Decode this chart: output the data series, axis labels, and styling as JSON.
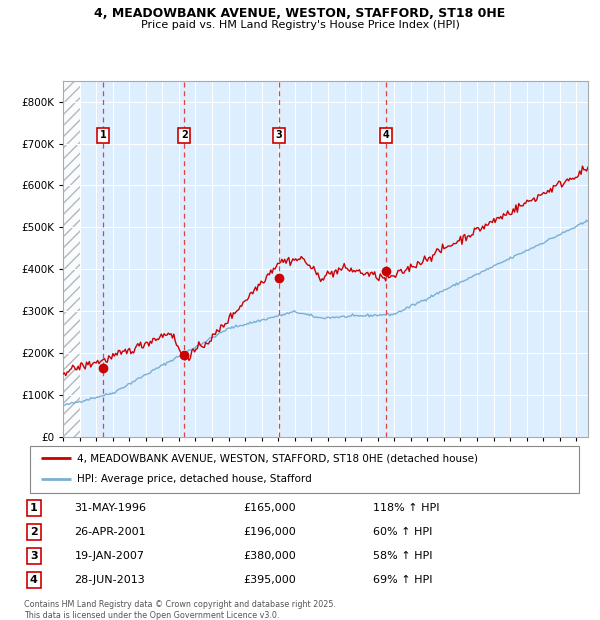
{
  "title_line1": "4, MEADOWBANK AVENUE, WESTON, STAFFORD, ST18 0HE",
  "title_line2": "Price paid vs. HM Land Registry's House Price Index (HPI)",
  "ylim": [
    0,
    850000
  ],
  "yticks": [
    0,
    100000,
    200000,
    300000,
    400000,
    500000,
    600000,
    700000,
    800000
  ],
  "ytick_labels": [
    "£0",
    "£100K",
    "£200K",
    "£300K",
    "£400K",
    "£500K",
    "£600K",
    "£700K",
    "£800K"
  ],
  "background_color": "#ffffff",
  "plot_bg_color": "#ddeeff",
  "grid_color": "#ffffff",
  "red_line_color": "#cc0000",
  "blue_line_color": "#7ab0d4",
  "dashed_line_color": "#dd4444",
  "purchases": [
    {
      "label": "1",
      "date_x": 1996.42,
      "price": 165000,
      "date_str": "31-MAY-1996",
      "pct": "118%"
    },
    {
      "label": "2",
      "date_x": 2001.32,
      "price": 196000,
      "date_str": "26-APR-2001",
      "pct": "60%"
    },
    {
      "label": "3",
      "date_x": 2007.05,
      "price": 380000,
      "date_str": "19-JAN-2007",
      "pct": "58%"
    },
    {
      "label": "4",
      "date_x": 2013.49,
      "price": 395000,
      "date_str": "28-JUN-2013",
      "pct": "69%"
    }
  ],
  "legend_entries": [
    {
      "label": "4, MEADOWBANK AVENUE, WESTON, STAFFORD, ST18 0HE (detached house)",
      "color": "#cc0000"
    },
    {
      "label": "HPI: Average price, detached house, Stafford",
      "color": "#7ab0d4"
    }
  ],
  "footnote": "Contains HM Land Registry data © Crown copyright and database right 2025.\nThis data is licensed under the Open Government Licence v3.0.",
  "xmin": 1994.0,
  "xmax": 2025.7
}
